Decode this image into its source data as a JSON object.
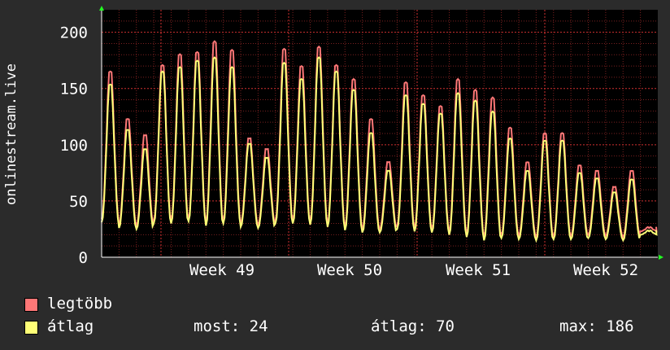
{
  "chart_data": {
    "type": "line",
    "ylabel": "onlinestream.live",
    "ylim": [
      0,
      220
    ],
    "y_ticks": [
      "0",
      "50",
      "100",
      "150",
      "200"
    ],
    "x_ticks": [
      "Week 49",
      "Week 50",
      "Week 51",
      "Week 52"
    ],
    "grid": true,
    "day_peaks": {
      "max": [
        172,
        128,
        113,
        178,
        188,
        190,
        200,
        192,
        110,
        100,
        193,
        177,
        195,
        178,
        165,
        128,
        88,
        162,
        150,
        140,
        165,
        155,
        148,
        120,
        88,
        115,
        115,
        85,
        80,
        65,
        80,
        27
      ],
      "avg": [
        160,
        118,
        100,
        172,
        176,
        182,
        185,
        176,
        105,
        92,
        180,
        165,
        185,
        172,
        155,
        115,
        80,
        150,
        142,
        133,
        152,
        145,
        135,
        110,
        80,
        108,
        108,
        78,
        73,
        60,
        72,
        24
      ],
      "mins": [
        31,
        26,
        25,
        30,
        30,
        32,
        28,
        30,
        27,
        26,
        30,
        30,
        29,
        27,
        24,
        22,
        22,
        25,
        23,
        22,
        20,
        18,
        15,
        17,
        16,
        15,
        16,
        16,
        17,
        16,
        15,
        20
      ]
    },
    "series": [
      {
        "name": "legtöbb",
        "color": "#ff7777"
      },
      {
        "name": "átlag",
        "color": "#ffff77"
      }
    ]
  },
  "legend": {
    "max_label": "legtöbb",
    "avg_label": "átlag",
    "max_color": "#ff7777",
    "avg_color": "#ffff77"
  },
  "stats": {
    "now": "most: 24",
    "avg": "átlag: 70",
    "max": "max: 186"
  },
  "colors": {
    "background": "#2b2b2b",
    "plot_bg": "#000000",
    "grid": "#d03030",
    "axis": "#ffffff",
    "arrow": "#22ff22"
  }
}
